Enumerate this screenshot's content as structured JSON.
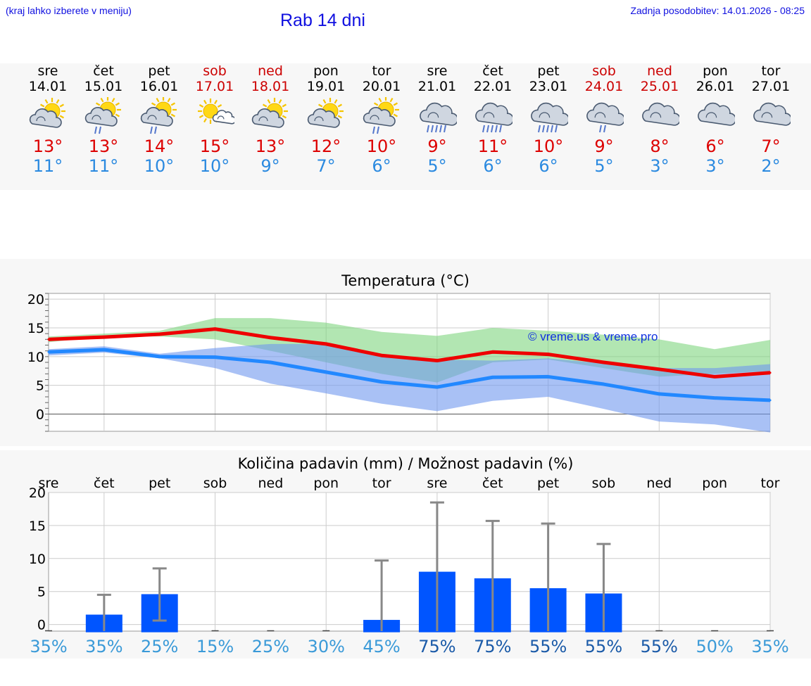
{
  "header": {
    "location_note": "(kraj lahko izberete v meniju)",
    "title": "Rab 14 dni",
    "last_update": "Zadnja posodobitev: 14.01.2026 - 08:25"
  },
  "colors": {
    "link_blue": "#1010e0",
    "tmax_red": "#dd0000",
    "tmin_blue": "#2b8ae0",
    "weekend_red": "#cc0000",
    "bar_blue": "#0055ff"
  },
  "forecast": [
    {
      "day": "sre",
      "date": "14.01",
      "icon": "sun-cloud-icon",
      "tmax": "13°",
      "tmin": "11°",
      "weekend": false
    },
    {
      "day": "čet",
      "date": "15.01",
      "icon": "sun-cloud-rain-icon",
      "tmax": "13°",
      "tmin": "11°",
      "weekend": false
    },
    {
      "day": "pet",
      "date": "16.01",
      "icon": "sun-cloud-rain-icon",
      "tmax": "14°",
      "tmin": "10°",
      "weekend": false
    },
    {
      "day": "sob",
      "date": "17.01",
      "icon": "sun-small-cloud-icon",
      "tmax": "15°",
      "tmin": "10°",
      "weekend": true
    },
    {
      "day": "ned",
      "date": "18.01",
      "icon": "sun-cloud-icon",
      "tmax": "13°",
      "tmin": "9°",
      "weekend": true
    },
    {
      "day": "pon",
      "date": "19.01",
      "icon": "sun-cloud-icon",
      "tmax": "12°",
      "tmin": "7°",
      "weekend": false
    },
    {
      "day": "tor",
      "date": "20.01",
      "icon": "sun-cloud-rain-icon",
      "tmax": "10°",
      "tmin": "6°",
      "weekend": false
    },
    {
      "day": "sre",
      "date": "21.01",
      "icon": "cloud-heavy-rain-icon",
      "tmax": "9°",
      "tmin": "5°",
      "weekend": false
    },
    {
      "day": "čet",
      "date": "22.01",
      "icon": "cloud-heavy-rain-icon",
      "tmax": "11°",
      "tmin": "6°",
      "weekend": false
    },
    {
      "day": "pet",
      "date": "23.01",
      "icon": "cloud-heavy-rain-icon",
      "tmax": "10°",
      "tmin": "6°",
      "weekend": false
    },
    {
      "day": "sob",
      "date": "24.01",
      "icon": "cloud-rain-icon",
      "tmax": "9°",
      "tmin": "5°",
      "weekend": true
    },
    {
      "day": "ned",
      "date": "25.01",
      "icon": "cloud-icon",
      "tmax": "8°",
      "tmin": "3°",
      "weekend": true
    },
    {
      "day": "pon",
      "date": "26.01",
      "icon": "cloud-icon",
      "tmax": "6°",
      "tmin": "3°",
      "weekend": false
    },
    {
      "day": "tor",
      "date": "27.01",
      "icon": "cloud-icon",
      "tmax": "7°",
      "tmin": "2°",
      "weekend": false
    }
  ],
  "chart_data": [
    {
      "type": "line",
      "title": "Temperatura (°C)",
      "watermark": "© vreme.us & vreme.pro",
      "ylim": [
        -3,
        21
      ],
      "yticks": [
        0,
        5,
        10,
        15,
        20
      ],
      "x": [
        0,
        1,
        2,
        3,
        4,
        5,
        6,
        7,
        8,
        9,
        10,
        11,
        12,
        13
      ],
      "series": [
        {
          "name": "max",
          "color": "#ee0000",
          "values": [
            13,
            13.4,
            13.9,
            14.8,
            13.3,
            12.2,
            10.2,
            9.3,
            10.8,
            10.4,
            9.0,
            7.8,
            6.5,
            7.2
          ]
        },
        {
          "name": "min",
          "color": "#2288ff",
          "values": [
            10.8,
            11.2,
            10.0,
            9.9,
            9.0,
            7.3,
            5.6,
            4.7,
            6.4,
            6.5,
            5.2,
            3.5,
            2.8,
            2.4
          ]
        }
      ],
      "bands": [
        {
          "name": "max-range",
          "color": "#7fd67f",
          "low": [
            12.5,
            13.5,
            13.5,
            13.0,
            11.0,
            9.0,
            7.0,
            5.5,
            9.0,
            9.5,
            8.0,
            6.5,
            7.0,
            7.5
          ],
          "high": [
            13.5,
            14.0,
            14.5,
            16.7,
            16.7,
            15.9,
            14.3,
            13.6,
            15.0,
            14.5,
            13.8,
            13.0,
            11.3,
            12.9
          ]
        },
        {
          "name": "min-range",
          "color": "#6f98ee",
          "low": [
            10.2,
            10.7,
            9.7,
            8.0,
            5.3,
            3.6,
            1.8,
            0.5,
            2.3,
            3.0,
            0.9,
            -1.3,
            -1.8,
            -3.2
          ],
          "high": [
            11.3,
            11.8,
            10.5,
            11.5,
            12.2,
            12.2,
            10.0,
            9.5,
            9.3,
            9.7,
            8.8,
            8.0,
            8.0,
            8.7
          ]
        }
      ]
    },
    {
      "type": "bar",
      "title": "Količina padavin (mm) / Možnost padavin (%)",
      "categories": [
        "sre",
        "čet",
        "pet",
        "sob",
        "ned",
        "pon",
        "tor",
        "sre",
        "čet",
        "pet",
        "sob",
        "ned",
        "pon",
        "tor"
      ],
      "ylim": [
        -1,
        20
      ],
      "yticks": [
        0,
        5,
        10,
        15,
        20
      ],
      "values": [
        0,
        1.5,
        4.6,
        0,
        0,
        0,
        0.7,
        8.0,
        7.0,
        5.5,
        4.7,
        0,
        0,
        0
      ],
      "error_high": [
        0,
        4.5,
        8.5,
        0,
        0,
        0,
        9.7,
        18.5,
        15.7,
        15.3,
        12.2,
        0,
        0,
        0
      ],
      "error_low": [
        0,
        0,
        0.6,
        0,
        0,
        0,
        0,
        0,
        0,
        0,
        0,
        0,
        0,
        0
      ],
      "probabilities": [
        "35%",
        "35%",
        "25%",
        "15%",
        "25%",
        "30%",
        "45%",
        "75%",
        "75%",
        "55%",
        "55%",
        "55%",
        "50%",
        "35%"
      ]
    }
  ]
}
